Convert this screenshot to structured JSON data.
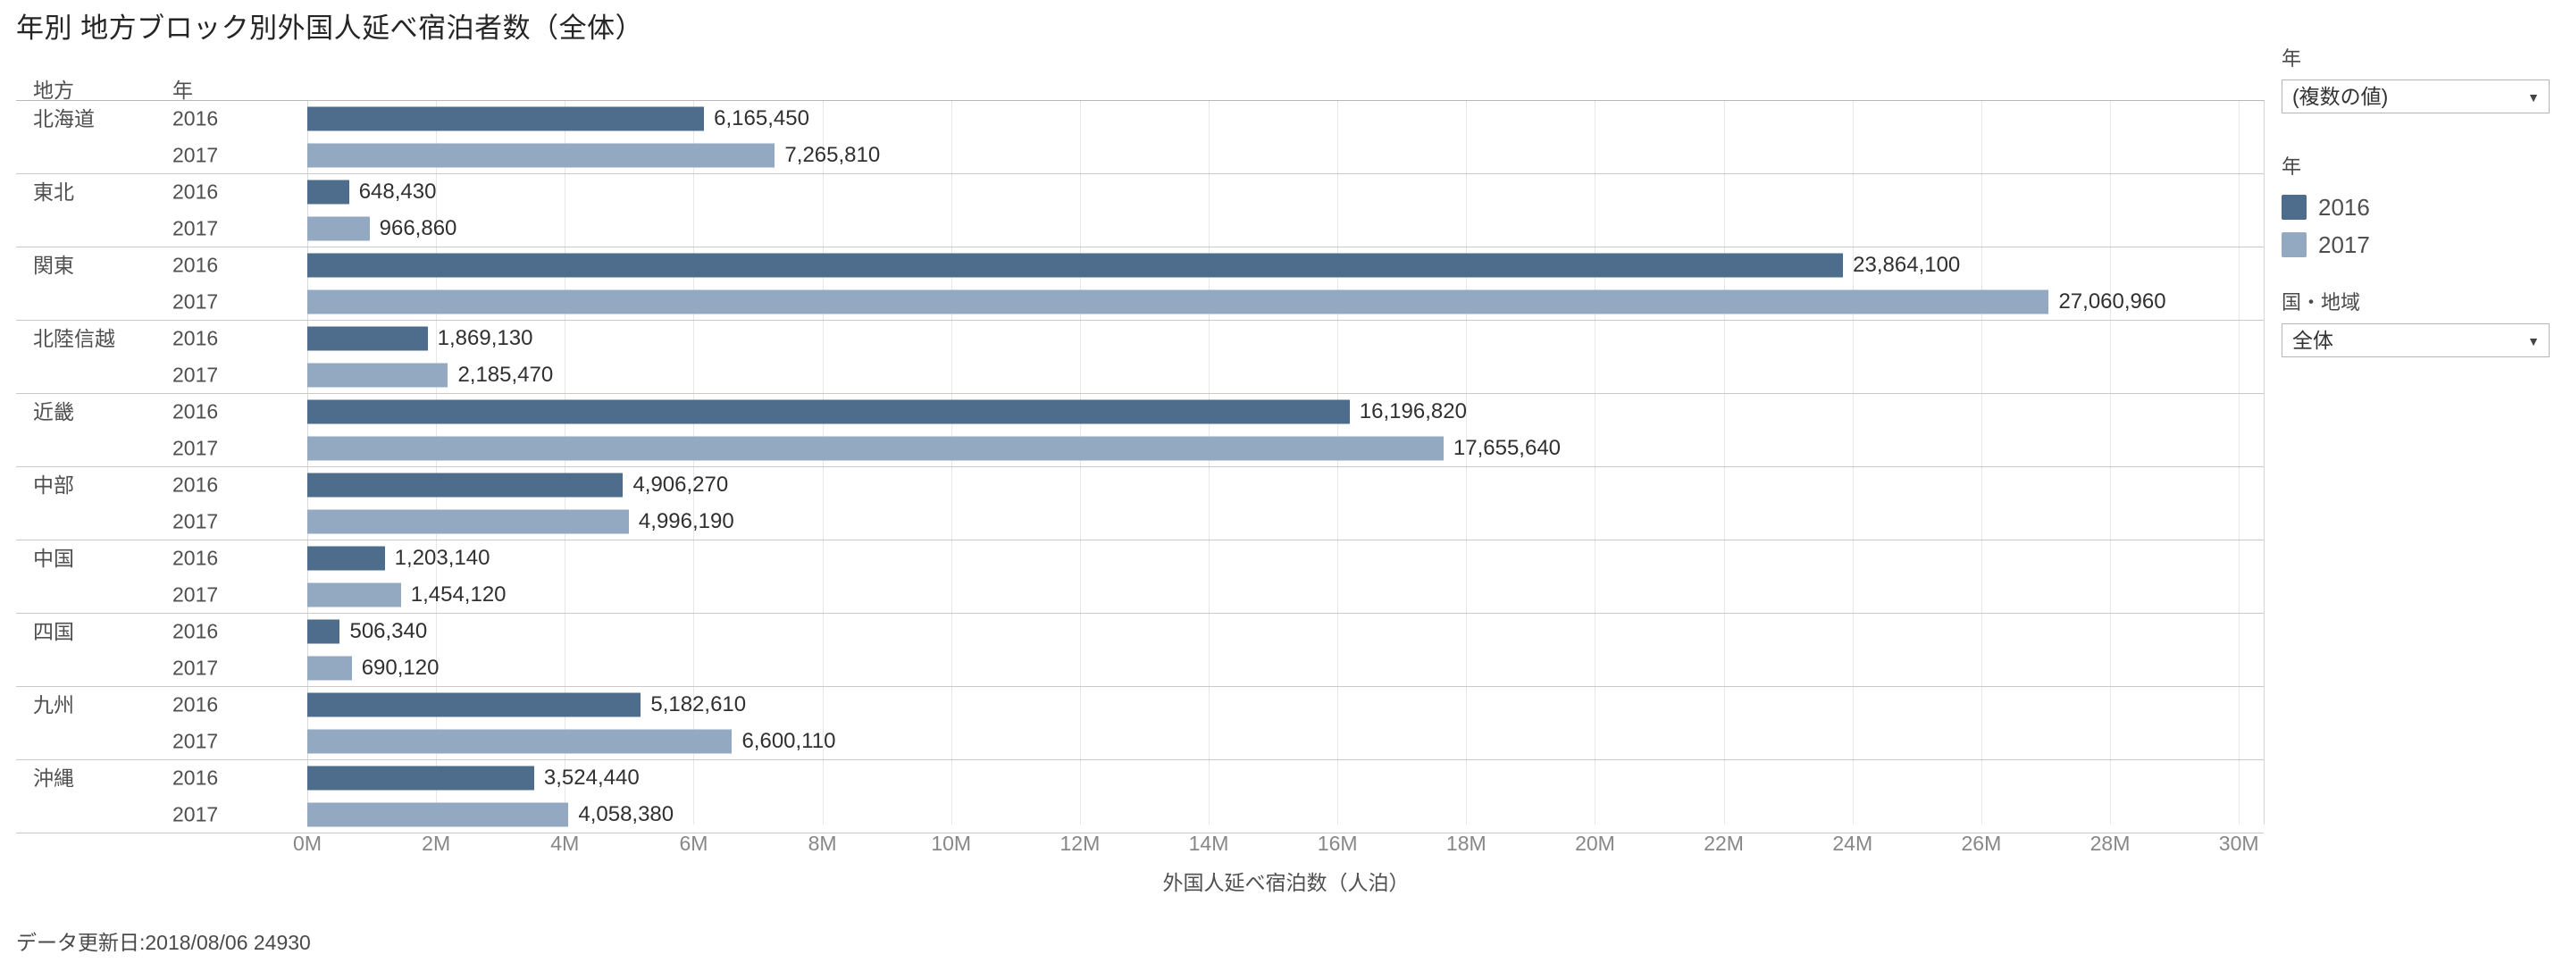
{
  "title": "年別 地方ブロック別外国人延べ宿泊者数（全体）",
  "columns": {
    "region": "地方",
    "year": "年"
  },
  "chart_data": {
    "type": "bar",
    "orientation": "horizontal",
    "title": "年別 地方ブロック別外国人延べ宿泊者数（全体）",
    "categories": [
      "北海道",
      "東北",
      "関東",
      "北陸信越",
      "近畿",
      "中部",
      "中国",
      "四国",
      "九州",
      "沖縄"
    ],
    "series": [
      {
        "name": "2016",
        "color": "#4e6c8b",
        "values": [
          6165450,
          648430,
          23864100,
          1869130,
          16196820,
          4906270,
          1203140,
          506340,
          5182610,
          3524440
        ]
      },
      {
        "name": "2017",
        "color": "#93a9c1",
        "values": [
          7265810,
          966860,
          27060960,
          2185470,
          17655640,
          4996190,
          1454120,
          690120,
          6600110,
          4058380
        ]
      }
    ],
    "value_labels": {
      "2016": [
        "6,165,450",
        "648,430",
        "23,864,100",
        "1,869,130",
        "16,196,820",
        "4,906,270",
        "1,203,140",
        "506,340",
        "5,182,610",
        "3,524,440"
      ],
      "2017": [
        "7,265,810",
        "966,860",
        "27,060,960",
        "2,185,470",
        "17,655,640",
        "4,996,190",
        "1,454,120",
        "690,120",
        "6,600,110",
        "4,058,380"
      ]
    },
    "xlabel": "外国人延べ宿泊数（人泊）",
    "x_ticks": [
      "0M",
      "2M",
      "4M",
      "6M",
      "8M",
      "10M",
      "12M",
      "14M",
      "16M",
      "18M",
      "20M",
      "22M",
      "24M",
      "26M",
      "28M",
      "30M"
    ],
    "x_tick_values": [
      0,
      2000000,
      4000000,
      6000000,
      8000000,
      10000000,
      12000000,
      14000000,
      16000000,
      18000000,
      20000000,
      22000000,
      24000000,
      26000000,
      28000000,
      30000000
    ],
    "xlim": [
      0,
      30400000
    ],
    "grid": true,
    "legend_position": "right"
  },
  "filters": {
    "year_filter": {
      "label": "年",
      "value": "(複数の値)"
    },
    "region_filter": {
      "label": "国・地域",
      "value": "全体"
    }
  },
  "legend": {
    "title": "年",
    "items": [
      {
        "label": "2016",
        "color": "#4e6c8b"
      },
      {
        "label": "2017",
        "color": "#93a9c1"
      }
    ]
  },
  "footer": "データ更新日:2018/08/06 24930"
}
